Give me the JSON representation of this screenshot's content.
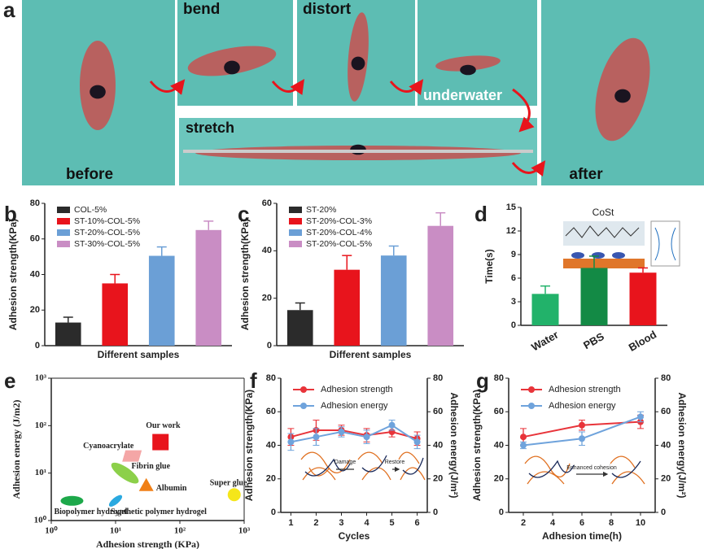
{
  "panel_a": {
    "panel": "a",
    "photos": [
      "before",
      "bend",
      "distort",
      "underwater",
      "stretch",
      "after"
    ]
  },
  "chart_data": [
    {
      "type": "bar",
      "panel": "b",
      "ylabel": "Adhesion strength(KPa)",
      "xlabel": "Different samples",
      "ylim": [
        0,
        80
      ],
      "yticks": [
        0,
        20,
        40,
        60,
        80
      ],
      "series": [
        {
          "name": "COL-5%",
          "color": "#2b2b2b",
          "values": [
            13
          ],
          "errors": [
            3
          ]
        },
        {
          "name": "ST-10%-COL-5%",
          "color": "#e8141c",
          "values": [
            35
          ],
          "errors": [
            5
          ]
        },
        {
          "name": "ST-20%-COL-5%",
          "color": "#6b9fd6",
          "values": [
            50.5
          ],
          "errors": [
            5
          ]
        },
        {
          "name": "ST-30%-COL-5%",
          "color": "#c98dc4",
          "values": [
            65
          ],
          "errors": [
            5
          ]
        }
      ]
    },
    {
      "type": "bar",
      "panel": "c",
      "ylabel": "Adhesion strength(KPa)",
      "xlabel": "Different samples",
      "ylim": [
        0,
        60
      ],
      "yticks": [
        0,
        20,
        40,
        60
      ],
      "series": [
        {
          "name": "ST-20%",
          "color": "#2b2b2b",
          "values": [
            15
          ],
          "errors": [
            3
          ]
        },
        {
          "name": "ST-20%-COL-3%",
          "color": "#e8141c",
          "values": [
            32
          ],
          "errors": [
            6
          ]
        },
        {
          "name": "ST-20%-COL-4%",
          "color": "#6b9fd6",
          "values": [
            38
          ],
          "errors": [
            4
          ]
        },
        {
          "name": "ST-20%-COL-5%",
          "color": "#c98dc4",
          "values": [
            50.5
          ],
          "errors": [
            5.5
          ]
        }
      ]
    },
    {
      "type": "bar",
      "panel": "d",
      "ylabel": "Time(s)",
      "annotations": [
        "CoSt"
      ],
      "ylim": [
        0,
        15
      ],
      "yticks": [
        0,
        3,
        6,
        9,
        12,
        15
      ],
      "categories": [
        "Water",
        "PBS",
        "Blood"
      ],
      "values": [
        4,
        7.3,
        6.7
      ],
      "errors": [
        1,
        1.5,
        0.6
      ],
      "colors": [
        "#22b26a",
        "#138a45",
        "#e8141c"
      ]
    },
    {
      "type": "scatter",
      "panel": "e",
      "xlabel": "Adhesion strength (KPa)",
      "ylabel": "Adhesion energy (J/m2)",
      "xscale": "log",
      "yscale": "log",
      "xlim": [
        1,
        1000
      ],
      "ylim": [
        1,
        1000
      ],
      "xticks": [
        {
          "value": 1,
          "label": "10⁰"
        },
        {
          "value": 10,
          "label": "10¹"
        },
        {
          "value": 100,
          "label": "10²"
        },
        {
          "value": 1000,
          "label": "10³"
        }
      ],
      "yticks": [
        {
          "value": 1,
          "label": "10⁰"
        },
        {
          "value": 10,
          "label": "10¹"
        },
        {
          "value": 100,
          "label": "10²"
        },
        {
          "value": 1000,
          "label": "10³"
        }
      ],
      "series": [
        {
          "name": "Our work",
          "color": "#e8141c",
          "marker": "square",
          "x": [
            50
          ],
          "values": [
            45
          ]
        },
        {
          "name": "Cyanoacrylate",
          "color": "#f4a6a6",
          "marker": "parallelogram",
          "x": [
            18
          ],
          "values": [
            23
          ]
        },
        {
          "name": "Fibrin glue",
          "color": "#8cd04a",
          "marker": "ellipse",
          "x": [
            14
          ],
          "values": [
            10
          ]
        },
        {
          "name": "Albumin",
          "color": "#f07f16",
          "marker": "triangle",
          "x": [
            30
          ],
          "values": [
            5.5
          ]
        },
        {
          "name": "Super glue",
          "color": "#f5e61a",
          "marker": "circle",
          "x": [
            700
          ],
          "values": [
            3.5
          ]
        },
        {
          "name": "Synthetic polymer hydrogel",
          "color": "#2aa9e0",
          "marker": "slim",
          "x": [
            10
          ],
          "values": [
            2.6
          ]
        },
        {
          "name": "Biopolymer hydrogel",
          "color": "#1da84a",
          "marker": "wide",
          "x": [
            2.1
          ],
          "values": [
            2.6
          ]
        }
      ]
    },
    {
      "type": "line",
      "panel": "f",
      "xlabel": "Cycles",
      "ylabel": "Adhesion strength(KPa)",
      "y2label": "Adhesion energy(J/m²)",
      "annotations": [
        "Damage",
        "Restore"
      ],
      "xlim": [
        0.6,
        6.4
      ],
      "xticks": [
        1,
        2,
        3,
        4,
        5,
        6
      ],
      "ylim": [
        0,
        80
      ],
      "yticks": [
        0,
        20,
        40,
        60,
        80
      ],
      "y2lim": [
        0,
        80
      ],
      "y2ticks": [
        0,
        20,
        40,
        60,
        80
      ],
      "x": [
        1,
        2,
        3,
        4,
        5,
        6
      ],
      "series": [
        {
          "name": "Adhesion strength",
          "color": "#e8343a",
          "values": [
            45,
            49,
            49,
            46,
            48,
            44
          ],
          "errors": [
            5,
            6,
            3,
            4,
            3,
            4
          ]
        },
        {
          "name": "Adhesion energy",
          "color": "#6fa3dc",
          "axis": "y2",
          "values": [
            42,
            45,
            48,
            45,
            52,
            42
          ],
          "errors": [
            5,
            5,
            3,
            4,
            3,
            4
          ]
        }
      ]
    },
    {
      "type": "line",
      "panel": "g",
      "xlabel": "Adhesion time(h)",
      "ylabel": "Adhesion strength(KPa)",
      "y2label": "Adhesion energy(J/m²)",
      "annotations": [
        "Enhanced cohesion"
      ],
      "xlim": [
        1,
        11
      ],
      "xticks": [
        2,
        4,
        6,
        8,
        10
      ],
      "ylim": [
        0,
        80
      ],
      "yticks": [
        0,
        20,
        40,
        60,
        80
      ],
      "y2lim": [
        0,
        80
      ],
      "y2ticks": [
        0,
        20,
        40,
        60,
        80
      ],
      "x": [
        2,
        6,
        10
      ],
      "series": [
        {
          "name": "Adhesion strength",
          "color": "#e8343a",
          "values": [
            45,
            52,
            54
          ],
          "errors": [
            5,
            3,
            4
          ]
        },
        {
          "name": "Adhesion energy",
          "color": "#6fa3dc",
          "axis": "y2",
          "values": [
            40,
            44,
            57
          ],
          "errors": [
            2,
            4,
            3
          ]
        }
      ]
    }
  ]
}
